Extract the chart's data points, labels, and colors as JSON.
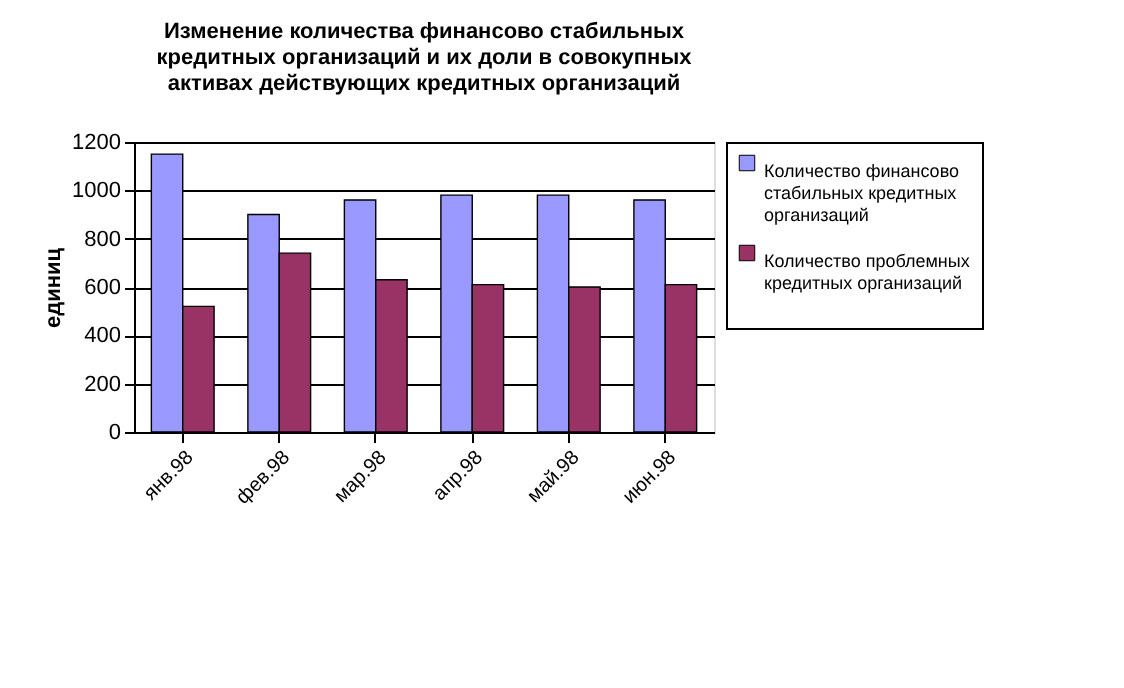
{
  "chart_data": {
    "type": "bar",
    "title": "Изменение количества финансово стабильных кредитных организаций и их доли в совокупных активах действующих кредитных организаций",
    "ylabel": "единиц",
    "categories": [
      "янв.98",
      "фев.98",
      "мар.98",
      "апр.98",
      "май.98",
      "июн.98"
    ],
    "series": [
      {
        "name": "Количество финансово стабильных кредитных организаций",
        "color": "#9999ff",
        "values": [
          1150,
          900,
          960,
          980,
          980,
          960
        ]
      },
      {
        "name": "Количество проблемных кредитных организаций",
        "color": "#993366",
        "values": [
          520,
          740,
          630,
          610,
          600,
          610
        ]
      }
    ],
    "ylim": [
      0,
      1200
    ],
    "yticks": [
      0,
      200,
      400,
      600,
      800,
      1000,
      1200
    ],
    "grid": "y",
    "legend": "right"
  }
}
